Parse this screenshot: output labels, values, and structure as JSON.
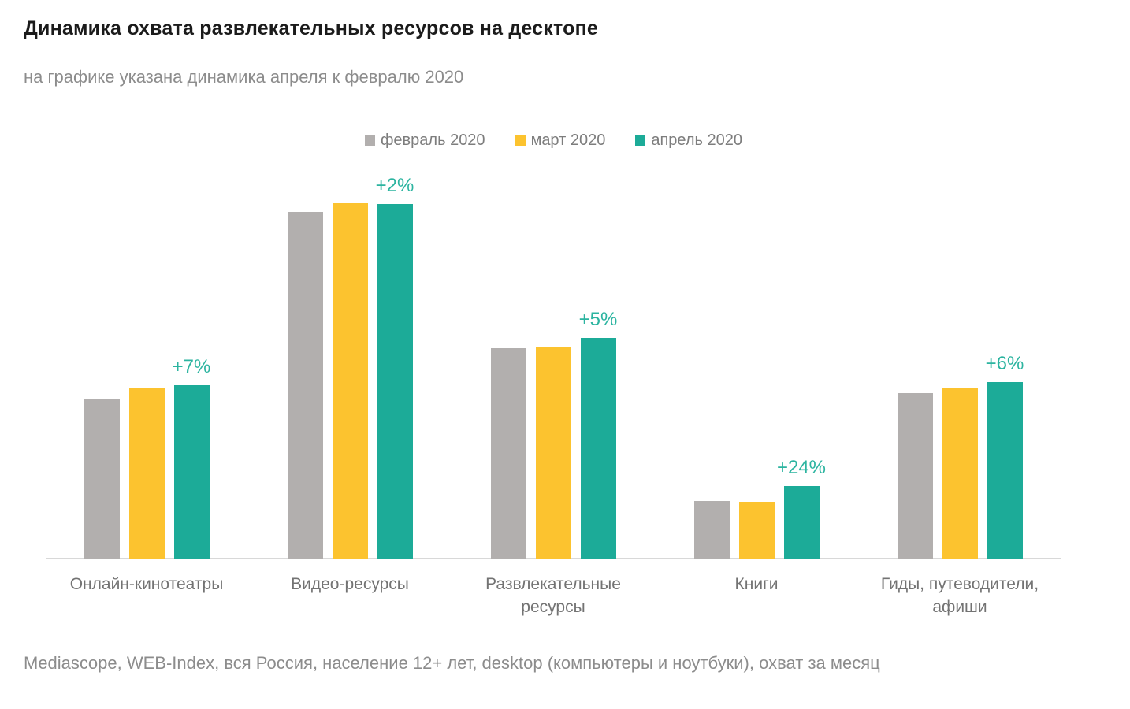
{
  "chart_data": {
    "type": "bar",
    "title": "Динамика охвата развлекательных ресурсов на десктопе",
    "subtitle": "на графике указана динамика апреля к февралю 2020",
    "source_note": "Mediascope, WEB-Index, вся Россия, население 12+ лет, desktop (компьютеры и ноутбуки), охват за месяц",
    "categories": [
      "Онлайн-кинотеатры",
      "Видео-ресурсы",
      "Развлекательные\nресурсы",
      "Книги",
      "Гиды, путеводители,\nафиши"
    ],
    "series": [
      {
        "name": "февраль 2020",
        "color": "#b2afae",
        "values": [
          203,
          440,
          267,
          73,
          210
        ]
      },
      {
        "name": "март 2020",
        "color": "#fcc32f",
        "values": [
          217,
          451,
          269,
          72,
          217
        ]
      },
      {
        "name": "апрель 2020",
        "color": "#1cab98",
        "values": [
          220,
          450,
          280,
          92,
          224
        ]
      }
    ],
    "annotations": [
      "+7%",
      "+2%",
      "+5%",
      "+24%",
      "+6%"
    ],
    "annotation_color": "#2cb4a0",
    "axis_line_color": "#d8d8d8",
    "units": "relative bar height in px (chart shows no numeric value axis)",
    "ylim": [
      0,
      500
    ],
    "grid": false,
    "legend_position": "top-center",
    "xlabel": "",
    "ylabel": ""
  }
}
